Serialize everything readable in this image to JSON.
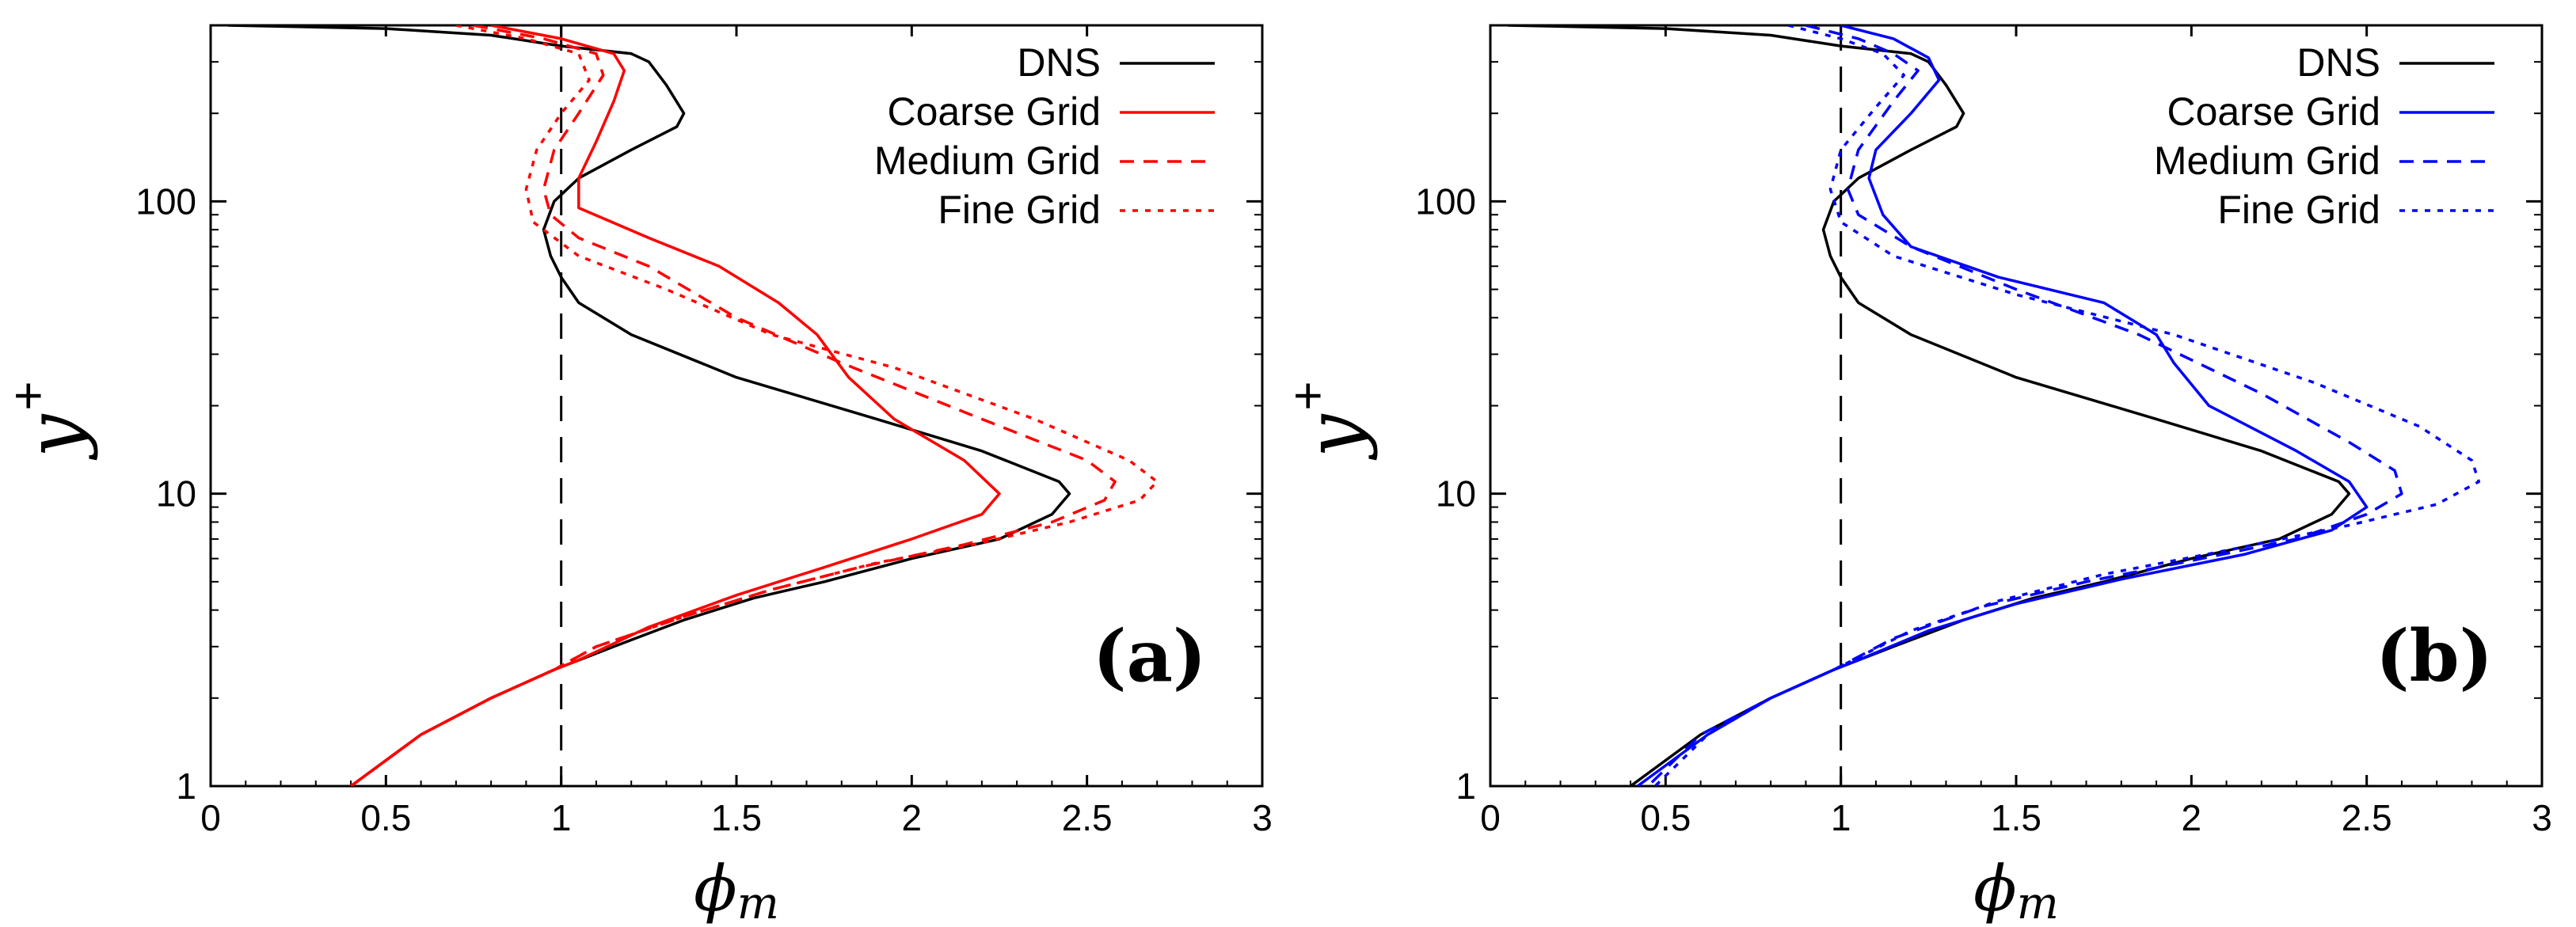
{
  "chart_data": [
    {
      "type": "line",
      "panel_label": "(a)",
      "xlabel": "ϕ",
      "xlabel_sub": "m",
      "ylabel": "y",
      "ylabel_sup": "+",
      "xlim": [
        0,
        3
      ],
      "ylim": [
        1,
        400
      ],
      "yscale": "log",
      "x_ticks": [
        "0",
        "0.5",
        "1",
        "1.5",
        "2",
        "2.5",
        "3"
      ],
      "y_ticks": [
        "1",
        "10",
        "100"
      ],
      "reference_line_x": 1,
      "legend_position": "top-right",
      "series": [
        {
          "name": "DNS",
          "color": "#000000",
          "dash": "solid",
          "points": [
            [
              0.05,
              400
            ],
            [
              0.5,
              390
            ],
            [
              0.8,
              370
            ],
            [
              1.0,
              340
            ],
            [
              1.2,
              320
            ],
            [
              1.25,
              300
            ],
            [
              1.3,
              250
            ],
            [
              1.35,
              200
            ],
            [
              1.33,
              180
            ],
            [
              1.2,
              150
            ],
            [
              1.05,
              120
            ],
            [
              0.98,
              100
            ],
            [
              0.95,
              80
            ],
            [
              0.97,
              65
            ],
            [
              1.0,
              55
            ],
            [
              1.05,
              45
            ],
            [
              1.2,
              35
            ],
            [
              1.5,
              25
            ],
            [
              1.9,
              18
            ],
            [
              2.2,
              14
            ],
            [
              2.42,
              11
            ],
            [
              2.45,
              10
            ],
            [
              2.4,
              8.5
            ],
            [
              2.25,
              7
            ],
            [
              2.0,
              6
            ],
            [
              1.75,
              5
            ],
            [
              1.55,
              4.4
            ],
            [
              1.35,
              3.7
            ],
            [
              1.15,
              3.0
            ],
            [
              0.98,
              2.5
            ],
            [
              0.8,
              2.0
            ],
            [
              0.6,
              1.5
            ],
            [
              0.4,
              1
            ]
          ]
        },
        {
          "name": "Coarse Grid",
          "color": "#ff0000",
          "dash": "solid",
          "points": [
            [
              0.8,
              400
            ],
            [
              1.0,
              360
            ],
            [
              1.15,
              320
            ],
            [
              1.18,
              280
            ],
            [
              1.15,
              220
            ],
            [
              1.1,
              160
            ],
            [
              1.05,
              120
            ],
            [
              1.05,
              95
            ],
            [
              1.25,
              75
            ],
            [
              1.45,
              60
            ],
            [
              1.62,
              45
            ],
            [
              1.73,
              35
            ],
            [
              1.82,
              25
            ],
            [
              1.95,
              18
            ],
            [
              2.15,
              13
            ],
            [
              2.25,
              10
            ],
            [
              2.2,
              8.5
            ],
            [
              2.0,
              7
            ],
            [
              1.75,
              5.6
            ],
            [
              1.5,
              4.5
            ],
            [
              1.25,
              3.5
            ],
            [
              1.05,
              2.7
            ],
            [
              0.98,
              2.5
            ],
            [
              0.8,
              2.0
            ],
            [
              0.6,
              1.5
            ],
            [
              0.4,
              1
            ]
          ]
        },
        {
          "name": "Medium Grid",
          "color": "#ff0000",
          "dash": "medium",
          "points": [
            [
              0.75,
              400
            ],
            [
              0.95,
              360
            ],
            [
              1.1,
              320
            ],
            [
              1.12,
              270
            ],
            [
              1.05,
              200
            ],
            [
              0.98,
              150
            ],
            [
              0.95,
              110
            ],
            [
              0.97,
              90
            ],
            [
              1.05,
              75
            ],
            [
              1.25,
              60
            ],
            [
              1.5,
              40
            ],
            [
              1.8,
              28
            ],
            [
              2.2,
              18
            ],
            [
              2.5,
              13
            ],
            [
              2.58,
              11
            ],
            [
              2.55,
              9.5
            ],
            [
              2.4,
              8
            ],
            [
              2.15,
              6.7
            ],
            [
              1.85,
              5.6
            ],
            [
              1.6,
              4.7
            ],
            [
              1.35,
              3.8
            ],
            [
              1.1,
              3.0
            ],
            [
              0.98,
              2.5
            ],
            [
              0.8,
              2.0
            ],
            [
              0.6,
              1.5
            ],
            [
              0.4,
              1
            ]
          ]
        },
        {
          "name": "Fine Grid",
          "color": "#ff0000",
          "dash": "fine",
          "points": [
            [
              0.7,
              400
            ],
            [
              0.9,
              360
            ],
            [
              1.05,
              320
            ],
            [
              1.08,
              260
            ],
            [
              1.0,
              200
            ],
            [
              0.93,
              150
            ],
            [
              0.9,
              110
            ],
            [
              0.92,
              85
            ],
            [
              1.05,
              65
            ],
            [
              1.3,
              50
            ],
            [
              1.6,
              35
            ],
            [
              1.95,
              27
            ],
            [
              2.35,
              18
            ],
            [
              2.62,
              13
            ],
            [
              2.7,
              11
            ],
            [
              2.65,
              9.5
            ],
            [
              2.45,
              8
            ],
            [
              2.2,
              6.8
            ],
            [
              1.9,
              5.8
            ],
            [
              1.6,
              4.7
            ],
            [
              1.35,
              3.8
            ],
            [
              1.1,
              3.0
            ],
            [
              0.98,
              2.5
            ],
            [
              0.8,
              2.0
            ],
            [
              0.6,
              1.5
            ],
            [
              0.4,
              1
            ]
          ]
        }
      ]
    },
    {
      "type": "line",
      "panel_label": "(b)",
      "xlabel": "ϕ",
      "xlabel_sub": "m",
      "ylabel": "y",
      "ylabel_sup": "+",
      "xlim": [
        0,
        3
      ],
      "ylim": [
        1,
        400
      ],
      "yscale": "log",
      "x_ticks": [
        "0",
        "0.5",
        "1",
        "1.5",
        "2",
        "2.5",
        "3"
      ],
      "y_ticks": [
        "1",
        "10",
        "100"
      ],
      "reference_line_x": 1,
      "legend_position": "top-right",
      "series": [
        {
          "name": "DNS",
          "color": "#000000",
          "dash": "solid",
          "points": [
            [
              0.05,
              400
            ],
            [
              0.5,
              390
            ],
            [
              0.8,
              370
            ],
            [
              1.0,
              340
            ],
            [
              1.2,
              320
            ],
            [
              1.25,
              300
            ],
            [
              1.3,
              250
            ],
            [
              1.35,
              200
            ],
            [
              1.33,
              180
            ],
            [
              1.2,
              150
            ],
            [
              1.05,
              120
            ],
            [
              0.98,
              100
            ],
            [
              0.95,
              80
            ],
            [
              0.97,
              65
            ],
            [
              1.0,
              55
            ],
            [
              1.05,
              45
            ],
            [
              1.2,
              35
            ],
            [
              1.5,
              25
            ],
            [
              1.9,
              18
            ],
            [
              2.2,
              14
            ],
            [
              2.42,
              11
            ],
            [
              2.45,
              10
            ],
            [
              2.4,
              8.5
            ],
            [
              2.25,
              7
            ],
            [
              2.0,
              6
            ],
            [
              1.75,
              5
            ],
            [
              1.55,
              4.4
            ],
            [
              1.35,
              3.7
            ],
            [
              1.15,
              3.0
            ],
            [
              0.98,
              2.5
            ],
            [
              0.8,
              2.0
            ],
            [
              0.6,
              1.5
            ],
            [
              0.4,
              1
            ]
          ]
        },
        {
          "name": "Coarse Grid",
          "color": "#0000ff",
          "dash": "solid",
          "points": [
            [
              1.0,
              400
            ],
            [
              1.15,
              360
            ],
            [
              1.25,
              310
            ],
            [
              1.28,
              260
            ],
            [
              1.2,
              200
            ],
            [
              1.1,
              150
            ],
            [
              1.08,
              120
            ],
            [
              1.12,
              90
            ],
            [
              1.2,
              70
            ],
            [
              1.45,
              55
            ],
            [
              1.75,
              45
            ],
            [
              1.9,
              35
            ],
            [
              1.95,
              28
            ],
            [
              2.05,
              20
            ],
            [
              2.3,
              14
            ],
            [
              2.45,
              11
            ],
            [
              2.5,
              9
            ],
            [
              2.4,
              7.5
            ],
            [
              2.15,
              6.2
            ],
            [
              1.8,
              5.1
            ],
            [
              1.5,
              4.2
            ],
            [
              1.25,
              3.4
            ],
            [
              1.05,
              2.7
            ],
            [
              0.98,
              2.5
            ],
            [
              0.8,
              2.0
            ],
            [
              0.62,
              1.5
            ],
            [
              0.42,
              1
            ]
          ]
        },
        {
          "name": "Medium Grid",
          "color": "#0000ff",
          "dash": "medium",
          "points": [
            [
              0.9,
              400
            ],
            [
              1.05,
              360
            ],
            [
              1.15,
              320
            ],
            [
              1.22,
              280
            ],
            [
              1.15,
              220
            ],
            [
              1.05,
              150
            ],
            [
              1.02,
              110
            ],
            [
              1.05,
              90
            ],
            [
              1.2,
              70
            ],
            [
              1.5,
              50
            ],
            [
              1.85,
              35
            ],
            [
              2.2,
              22
            ],
            [
              2.45,
              15
            ],
            [
              2.58,
              12
            ],
            [
              2.6,
              10
            ],
            [
              2.5,
              8.5
            ],
            [
              2.3,
              7
            ],
            [
              2.0,
              5.9
            ],
            [
              1.7,
              5.0
            ],
            [
              1.4,
              4.1
            ],
            [
              1.15,
              3.2
            ],
            [
              0.98,
              2.5
            ],
            [
              0.8,
              2.0
            ],
            [
              0.6,
              1.5
            ],
            [
              0.45,
              1
            ]
          ]
        },
        {
          "name": "Fine Grid",
          "color": "#0000ff",
          "dash": "fine",
          "points": [
            [
              0.85,
              400
            ],
            [
              1.0,
              360
            ],
            [
              1.12,
              320
            ],
            [
              1.18,
              270
            ],
            [
              1.1,
              210
            ],
            [
              1.0,
              150
            ],
            [
              0.97,
              110
            ],
            [
              1.0,
              85
            ],
            [
              1.15,
              65
            ],
            [
              1.5,
              48
            ],
            [
              1.95,
              35
            ],
            [
              2.35,
              24
            ],
            [
              2.65,
              17
            ],
            [
              2.8,
              13
            ],
            [
              2.82,
              11
            ],
            [
              2.7,
              9.2
            ],
            [
              2.45,
              7.8
            ],
            [
              2.1,
              6.4
            ],
            [
              1.75,
              5.3
            ],
            [
              1.45,
              4.3
            ],
            [
              1.2,
              3.4
            ],
            [
              0.98,
              2.5
            ],
            [
              0.8,
              2.0
            ],
            [
              0.62,
              1.5
            ],
            [
              0.47,
              1
            ]
          ]
        }
      ]
    }
  ]
}
